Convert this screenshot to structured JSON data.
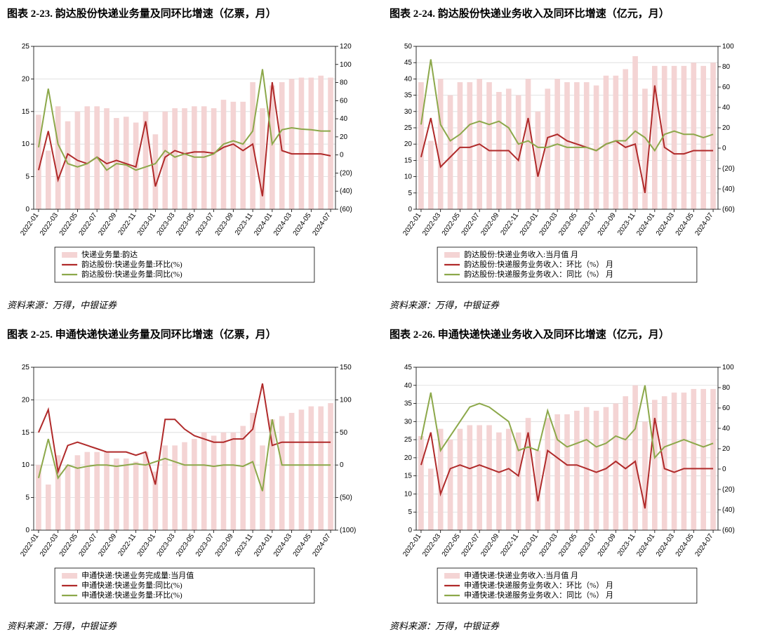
{
  "colors": {
    "bar": "#f4d4d4",
    "red": "#b02a2a",
    "green": "#8ca84a",
    "axis": "#000000",
    "right_axis_label": "#b02a2a",
    "grid": "#d9d9d9"
  },
  "common": {
    "source": "资料来源：万得，中银证券",
    "categories": [
      "2022-01",
      "2022-03",
      "2022-05",
      "2022-07",
      "2022-09",
      "2022-11",
      "2023-01",
      "2023-03",
      "2023-05",
      "2023-07",
      "2023-09",
      "2023-11",
      "2024-01",
      "2024-03",
      "2024-05",
      "2024-07"
    ],
    "n_total": 31
  },
  "panels": [
    {
      "id": "c23",
      "title": "图表 2-23. 韵达股份快递业务量及同环比增速（亿票，月）",
      "left_ylim": [
        0,
        25
      ],
      "left_ytick_step": 5,
      "right_ylim": [
        -60,
        120
      ],
      "right_ytick_step": 20,
      "right_paren_below_zero": true,
      "legend": [
        {
          "swatch": "bar",
          "label": "快递业务量:韵达"
        },
        {
          "swatch": "red",
          "label": "韵达股份:快递业务量:环比(%)"
        },
        {
          "swatch": "green",
          "label": "韵达股份:快递业务量:同比(%)"
        }
      ],
      "bars": [
        14.5,
        9,
        15.8,
        13.5,
        15,
        15.8,
        15.8,
        15.5,
        14,
        14.2,
        13.3,
        15,
        11.5,
        15,
        15.5,
        15.5,
        15.8,
        15.8,
        15.5,
        16.8,
        16.5,
        16.5,
        19.5,
        15.5,
        19,
        19.5,
        20,
        20.2,
        20.2,
        20.5,
        20.2
      ],
      "red": [
        6,
        12,
        4.5,
        8.5,
        7.5,
        7,
        8,
        7,
        7.5,
        7,
        6.5,
        13.5,
        3.5,
        8,
        9,
        8.5,
        8.8,
        8.8,
        8.6,
        9.5,
        10,
        9,
        10,
        2,
        19.5,
        9,
        8.5,
        8.5,
        8.5,
        8.5,
        8.2
      ],
      "green": [
        9.5,
        18.5,
        10,
        7,
        6.5,
        7,
        8,
        6,
        7,
        6.8,
        6,
        6.5,
        7,
        9,
        8,
        8.5,
        8,
        8,
        8.5,
        10,
        10.5,
        10,
        12,
        21.5,
        10,
        12.2,
        12.5,
        12.3,
        12.2,
        12,
        12
      ]
    },
    {
      "id": "c24",
      "title": "图表 2-24. 韵达股份快递业务收入及同环比增速（亿元，月）",
      "left_ylim": [
        0,
        50
      ],
      "left_ytick_step": 5,
      "right_ylim": [
        -60,
        100
      ],
      "right_ytick_step": 20,
      "right_paren_below_zero": true,
      "legend": [
        {
          "swatch": "bar",
          "label": "韵达股份:快递业务收入:当月值 月"
        },
        {
          "swatch": "red",
          "label": "韵达股份:快递服务业务收入：环比（%） 月"
        },
        {
          "swatch": "green",
          "label": "韵达股份:快递服务业务收入：同比（%） 月"
        }
      ],
      "bars": [
        39,
        21,
        40,
        35,
        39,
        39,
        40,
        39,
        36,
        37,
        35,
        40,
        30,
        37,
        40,
        39,
        39,
        39,
        38,
        41,
        41,
        43,
        47,
        37,
        44,
        44,
        44,
        44,
        45,
        44,
        45
      ],
      "red": [
        16,
        28,
        13,
        16,
        19,
        19,
        20,
        18,
        18,
        18,
        15,
        28,
        10,
        22,
        23,
        21,
        20,
        19,
        18,
        20,
        21,
        19,
        20,
        5,
        38,
        19,
        17,
        17,
        18,
        18,
        18
      ],
      "green": [
        26,
        46,
        26,
        21,
        23,
        26,
        27,
        26,
        27,
        25,
        20,
        21,
        19,
        19,
        20,
        19,
        19,
        19,
        18,
        20,
        21,
        21,
        24,
        22,
        18,
        23,
        24,
        23,
        23,
        22,
        23
      ]
    },
    {
      "id": "c25",
      "title": "图表 2-25. 申通快递快递业务量及同环比增速（亿票，月）",
      "left_ylim": [
        0,
        25
      ],
      "left_ytick_step": 5,
      "right_ylim": [
        -100,
        150
      ],
      "right_ytick_step": 50,
      "right_paren_below_zero": true,
      "legend": [
        {
          "swatch": "bar",
          "label": "申通快递:快递业务完成量:当月值"
        },
        {
          "swatch": "red",
          "label": "申通快递:快递业务量:同比(%)"
        },
        {
          "swatch": "green",
          "label": "申通快递:快递业务量:环比(%)"
        }
      ],
      "bars": [
        10,
        7,
        11.5,
        10,
        11.5,
        12,
        12,
        12,
        11,
        11,
        10.5,
        12,
        9,
        13,
        13,
        13.5,
        14,
        15,
        14.5,
        15,
        15,
        16,
        18,
        13,
        17,
        17.5,
        18,
        18.5,
        19,
        19,
        19.5
      ],
      "red": [
        15,
        18.5,
        9,
        13,
        13.5,
        13,
        12.5,
        12,
        12,
        12,
        11.5,
        12,
        7,
        17,
        17,
        15.5,
        14.5,
        14,
        13.5,
        13.5,
        14,
        14,
        15.5,
        22.5,
        13,
        13.5,
        13.5,
        13.5,
        13.5,
        13.5,
        13.5
      ],
      "green": [
        8,
        14,
        8,
        10,
        9.5,
        9.8,
        10,
        10,
        9.8,
        10,
        10.2,
        10,
        10.5,
        11,
        10.5,
        10,
        10,
        10,
        9.8,
        10,
        10,
        9.8,
        10.5,
        6,
        17,
        10,
        10,
        10,
        10,
        10,
        10
      ]
    },
    {
      "id": "c26",
      "title": "图表 2-26. 申通快递快递业务收入及同环比增速（亿元，月）",
      "left_ylim": [
        0,
        45
      ],
      "left_ytick_step": 5,
      "right_ylim": [
        -60,
        100
      ],
      "right_ytick_step": 20,
      "right_paren_below_zero": true,
      "legend": [
        {
          "swatch": "bar",
          "label": "申通快递:快递业务收入:当月值 月"
        },
        {
          "swatch": "red",
          "label": "申通快递:快递服务业务收入：环比（%） 月"
        },
        {
          "swatch": "green",
          "label": "申通快递:快递服务业务收入：同比（%） 月"
        }
      ],
      "bars": [
        26,
        17,
        28,
        25,
        28,
        29,
        29,
        29,
        27,
        28,
        27,
        31,
        22,
        31,
        32,
        32,
        33,
        34,
        33,
        34,
        35,
        37,
        40,
        30,
        36,
        37,
        38,
        38,
        39,
        39,
        39
      ],
      "red": [
        18,
        27,
        10,
        17,
        18,
        17,
        18,
        17,
        16,
        17,
        15,
        27,
        8,
        22,
        20,
        18,
        18,
        17,
        16,
        17,
        19,
        17,
        19,
        6,
        31,
        17,
        16,
        17,
        17,
        17,
        17
      ],
      "green": [
        25,
        38,
        22,
        26,
        30,
        34,
        35,
        34,
        32,
        30,
        22,
        23,
        22,
        33,
        25,
        23,
        24,
        25,
        23,
        24,
        26,
        25,
        28,
        40,
        20,
        23,
        24,
        25,
        24,
        23,
        24
      ]
    }
  ]
}
